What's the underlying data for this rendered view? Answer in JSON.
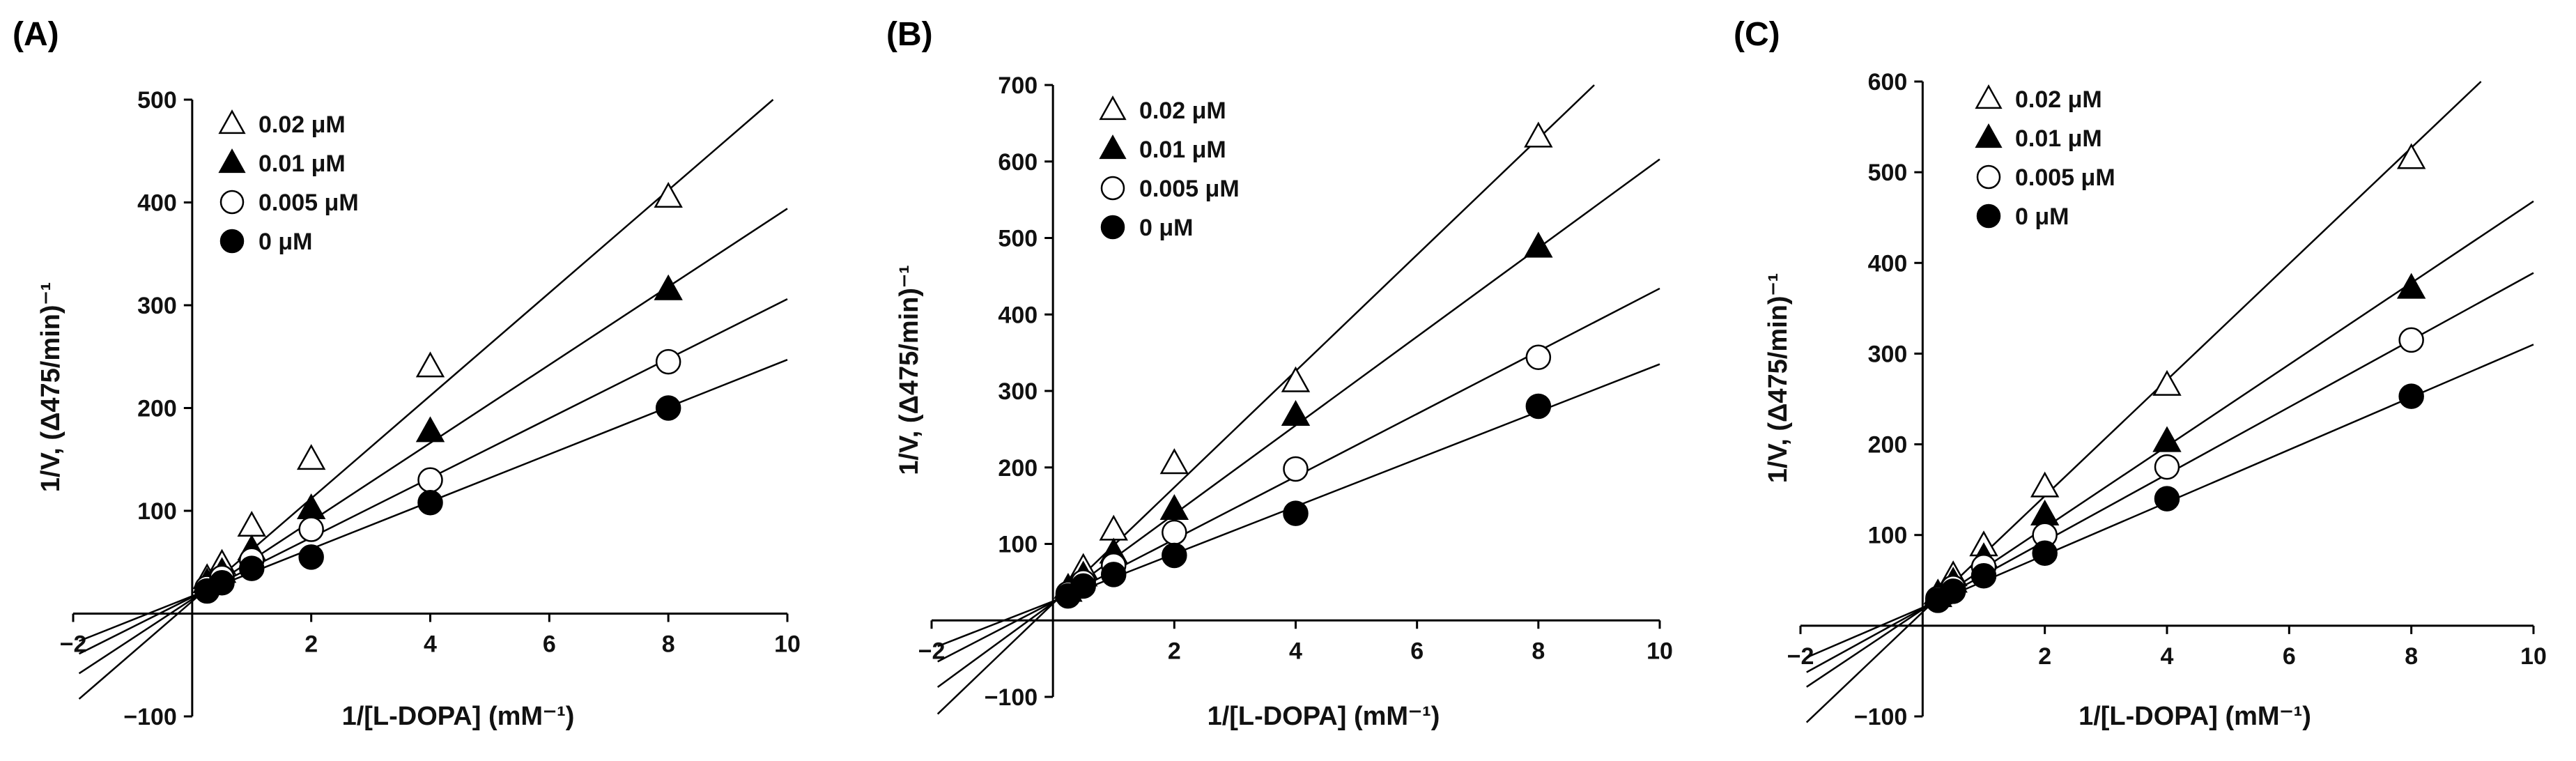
{
  "chart_data": [
    {
      "panel_label": "(A)",
      "type": "line",
      "xlabel": "1/[L-DOPA] (mM⁻¹)",
      "ylabel": "1/V, (Δ475/min)⁻¹",
      "xlim": [
        -2,
        10
      ],
      "ylim": [
        -100,
        500
      ],
      "xticks": [
        -2,
        2,
        4,
        6,
        8,
        10
      ],
      "yticks": [
        -100,
        100,
        200,
        300,
        400,
        500
      ],
      "x": [
        0.25,
        0.5,
        1,
        2,
        4,
        8
      ],
      "series": [
        {
          "name": "0.02 μM",
          "marker": "triangle-open",
          "values": [
            34,
            48,
            85,
            150,
            240,
            405
          ],
          "fit": {
            "slope": 50,
            "intercept": 12
          }
        },
        {
          "name": "0.01 μM",
          "marker": "triangle-filled",
          "values": [
            30,
            40,
            62,
            102,
            177,
            315
          ],
          "fit": {
            "slope": 38,
            "intercept": 14
          }
        },
        {
          "name": "0.005 μM",
          "marker": "circle-open",
          "values": [
            25,
            35,
            52,
            82,
            130,
            245
          ],
          "fit": {
            "slope": 29,
            "intercept": 16
          }
        },
        {
          "name": "0 μM",
          "marker": "circle-filled",
          "values": [
            22,
            30,
            44,
            55,
            108,
            200
          ],
          "fit": {
            "slope": 23,
            "intercept": 17
          }
        }
      ]
    },
    {
      "panel_label": "(B)",
      "type": "line",
      "xlabel": "1/[L-DOPA] (mM⁻¹)",
      "ylabel": "1/V, (Δ475/min)⁻¹",
      "xlim": [
        -2,
        10
      ],
      "ylim": [
        -100,
        700
      ],
      "xticks": [
        -2,
        2,
        4,
        6,
        8,
        10
      ],
      "yticks": [
        -100,
        100,
        200,
        300,
        400,
        500,
        600,
        700
      ],
      "x": [
        0.25,
        0.5,
        1,
        2,
        4,
        8
      ],
      "series": [
        {
          "name": "0.02 μM",
          "marker": "triangle-open",
          "values": [
            42,
            68,
            118,
            205,
            312,
            632
          ],
          "fit": {
            "slope": 76,
            "intercept": 22
          }
        },
        {
          "name": "0.01 μM",
          "marker": "triangle-filled",
          "values": [
            38,
            58,
            88,
            145,
            268,
            488
          ],
          "fit": {
            "slope": 58,
            "intercept": 23
          }
        },
        {
          "name": "0.005 μM",
          "marker": "circle-open",
          "values": [
            35,
            50,
            72,
            115,
            198,
            344
          ],
          "fit": {
            "slope": 41,
            "intercept": 24
          }
        },
        {
          "name": "0 μM",
          "marker": "circle-filled",
          "values": [
            32,
            45,
            60,
            85,
            140,
            280
          ],
          "fit": {
            "slope": 31,
            "intercept": 25
          }
        }
      ]
    },
    {
      "panel_label": "(C)",
      "type": "line",
      "xlabel": "1/[L-DOPA] (mM⁻¹)",
      "ylabel": "1/V, (Δ475/min)⁻¹",
      "xlim": [
        -2,
        10
      ],
      "ylim": [
        -100,
        600
      ],
      "xticks": [
        -2,
        2,
        4,
        6,
        8,
        10
      ],
      "yticks": [
        -100,
        100,
        200,
        300,
        400,
        500,
        600
      ],
      "x": [
        0.25,
        0.5,
        1,
        2,
        4,
        8
      ],
      "series": [
        {
          "name": "0.02 μM",
          "marker": "triangle-open",
          "values": [
            35,
            55,
            88,
            153,
            265,
            515
          ],
          "fit": {
            "slope": 64,
            "intercept": 15
          }
        },
        {
          "name": "0.01 μM",
          "marker": "triangle-filled",
          "values": [
            32,
            48,
            75,
            122,
            203,
            372
          ],
          "fit": {
            "slope": 45,
            "intercept": 18
          }
        },
        {
          "name": "0.005 μM",
          "marker": "circle-open",
          "values": [
            30,
            42,
            65,
            100,
            175,
            315
          ],
          "fit": {
            "slope": 37,
            "intercept": 19
          }
        },
        {
          "name": "0 μM",
          "marker": "circle-filled",
          "values": [
            28,
            38,
            55,
            80,
            140,
            253
          ],
          "fit": {
            "slope": 29,
            "intercept": 20
          }
        }
      ]
    }
  ]
}
